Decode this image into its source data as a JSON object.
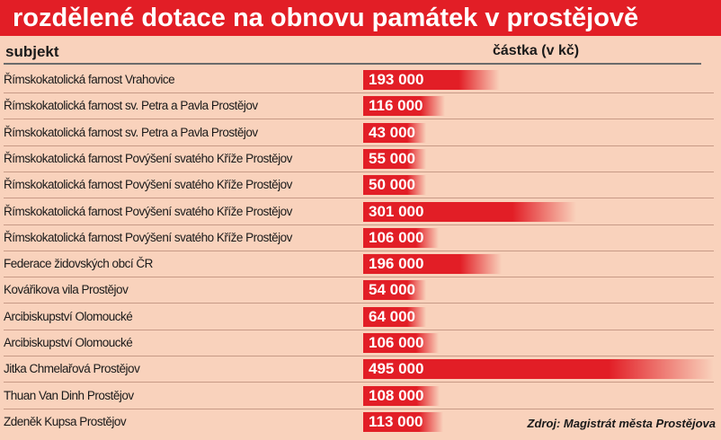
{
  "title": "rozdělené dotace na obnovu památek v prostějově",
  "columns": {
    "subject": "subjekt",
    "amount": "částka (v kč)"
  },
  "source": "Zdroj: Magistrát města Prostějova",
  "colors": {
    "accent": "#e21e26",
    "background": "#f9d2bc"
  },
  "chart_data": {
    "type": "bar",
    "orientation": "horizontal",
    "categories": [
      "Římskokatolická farnost Vrahovice",
      "Římskokatolická farnost sv. Petra a Pavla Prostějov",
      "Římskokatolická farnost sv. Petra a Pavla Prostějov",
      "Římskokatolická farnost Povýšení svatého Kříže Prostějov",
      "Římskokatolická farnost Povýšení svatého Kříže Prostějov",
      "Římskokatolická farnost Povýšení svatého Kříže Prostějov",
      "Římskokatolická farnost Povýšení svatého Kříže Prostějov",
      "Federace židovských obcí ČR",
      "Kovářikova vila Prostějov",
      "Arcibiskupství Olomoucké",
      "Arcibiskupství Olomoucké",
      "Jitka Chmelařová Prostějov",
      "Thuan Van Dinh Prostějov",
      "Zdeněk Kupsa Prostějov"
    ],
    "values": [
      193000,
      116000,
      43000,
      55000,
      50000,
      301000,
      106000,
      196000,
      54000,
      64000,
      106000,
      495000,
      108000,
      113000
    ],
    "value_labels": [
      "193 000",
      "116 000",
      "43 000",
      "55 000",
      "50 000",
      "301 000",
      "106 000",
      "196 000",
      "54 000",
      "64 000",
      "106 000",
      "495 000",
      "108 000",
      "113 000"
    ],
    "xlim": [
      0,
      495000
    ]
  }
}
